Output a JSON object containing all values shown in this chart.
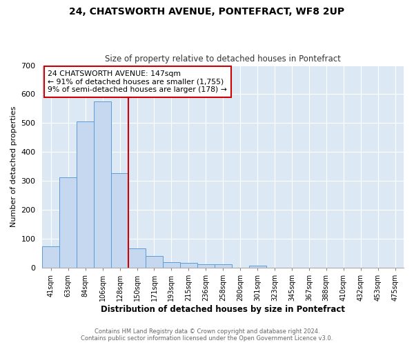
{
  "title": "24, CHATSWORTH AVENUE, PONTEFRACT, WF8 2UP",
  "subtitle": "Size of property relative to detached houses in Pontefract",
  "xlabel": "Distribution of detached houses by size in Pontefract",
  "ylabel": "Number of detached properties",
  "bin_labels": [
    "41sqm",
    "63sqm",
    "84sqm",
    "106sqm",
    "128sqm",
    "150sqm",
    "171sqm",
    "193sqm",
    "215sqm",
    "236sqm",
    "258sqm",
    "280sqm",
    "301sqm",
    "323sqm",
    "345sqm",
    "367sqm",
    "388sqm",
    "410sqm",
    "432sqm",
    "453sqm",
    "475sqm"
  ],
  "bar_values": [
    75,
    312,
    505,
    575,
    327,
    68,
    40,
    20,
    16,
    11,
    13,
    0,
    8,
    0,
    0,
    0,
    0,
    0,
    0,
    0,
    0
  ],
  "bar_color": "#c5d8f0",
  "bar_edge_color": "#5b9bd5",
  "vline_color": "#cc0000",
  "vline_position": 4.5,
  "ylim_max": 700,
  "yticks": [
    0,
    100,
    200,
    300,
    400,
    500,
    600,
    700
  ],
  "annotation_box_title": "24 CHATSWORTH AVENUE: 147sqm",
  "annotation_line1": "← 91% of detached houses are smaller (1,755)",
  "annotation_line2": "9% of semi-detached houses are larger (178) →",
  "annotation_box_edgecolor": "#cc0000",
  "background_color": "#dce9f5",
  "grid_color": "#ffffff",
  "footer_line1": "Contains HM Land Registry data © Crown copyright and database right 2024.",
  "footer_line2": "Contains public sector information licensed under the Open Government Licence v3.0."
}
